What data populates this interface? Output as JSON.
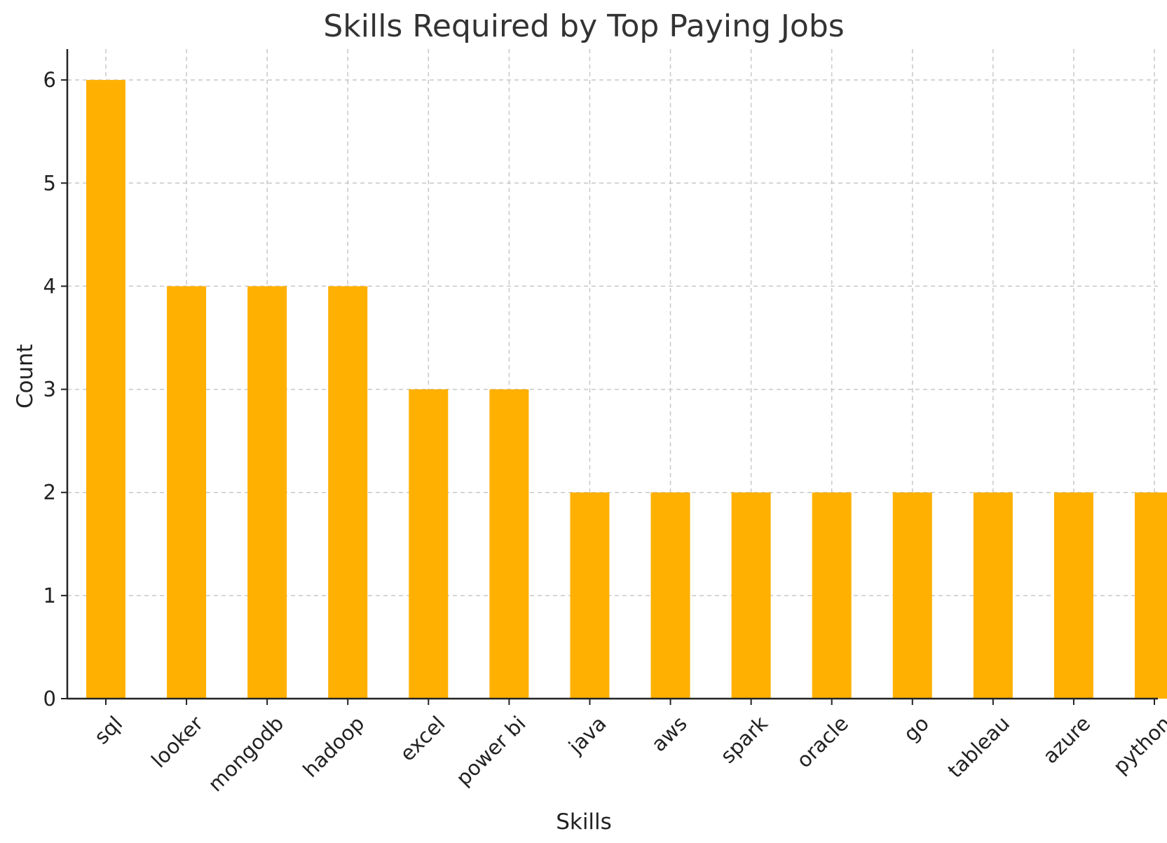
{
  "chart_data": {
    "type": "bar",
    "title": "Skills Required by Top Paying Jobs",
    "xlabel": "Skills",
    "ylabel": "Count",
    "categories": [
      "sql",
      "looker",
      "mongodb",
      "hadoop",
      "excel",
      "power bi",
      "java",
      "aws",
      "spark",
      "oracle",
      "go",
      "tableau",
      "azure",
      "python"
    ],
    "values": [
      6,
      4,
      4,
      4,
      3,
      3,
      2,
      2,
      2,
      2,
      2,
      2,
      2,
      2
    ],
    "yticks": [
      "0",
      "1",
      "2",
      "3",
      "4",
      "5",
      "6"
    ],
    "ylim": [
      0,
      6.3
    ],
    "grid": true,
    "bar_color": "#FFB000"
  }
}
